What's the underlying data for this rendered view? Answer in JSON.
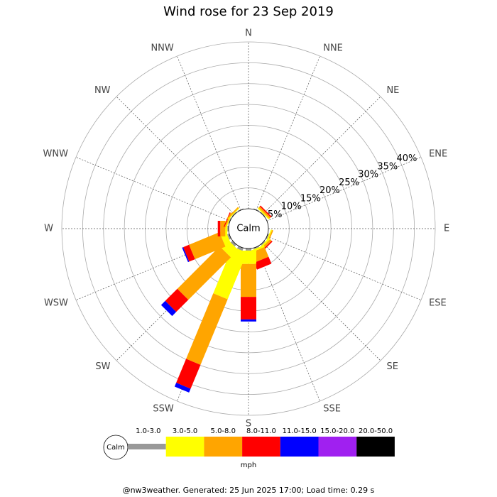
{
  "chart_data": {
    "type": "windrose",
    "title": "Wind rose for 23 Sep 2019",
    "categories": [
      "N",
      "NNE",
      "NE",
      "ENE",
      "E",
      "ESE",
      "SE",
      "SSE",
      "S",
      "SSW",
      "SW",
      "WSW",
      "W",
      "WNW",
      "NW",
      "NNW"
    ],
    "calm_label": "Calm",
    "series": [
      {
        "name": "1.0-3.0",
        "color": "#999999",
        "values": [
          0,
          0.2,
          0.2,
          0,
          0,
          0.3,
          0.3,
          0.3,
          0.5,
          0.7,
          0.6,
          0.5,
          0.3,
          0.2,
          0.2,
          0.2
        ]
      },
      {
        "name": "3.0-5.0",
        "color": "#ffff00",
        "values": [
          0,
          0,
          0.3,
          0,
          0,
          0.3,
          0.4,
          0.5,
          3.2,
          12.1,
          2.5,
          1.5,
          0.5,
          0.2,
          0.2,
          0
        ]
      },
      {
        "name": "5.0-8.0",
        "color": "#ffa500",
        "values": [
          0,
          0,
          0.4,
          0,
          0,
          0.3,
          0.5,
          2.5,
          7.9,
          17,
          14.4,
          7.9,
          1.2,
          0.3,
          0.3,
          0
        ]
      },
      {
        "name": "8.0-11.0",
        "color": "#ff0000",
        "values": [
          0,
          0,
          0.3,
          0,
          0,
          0,
          0.3,
          1.8,
          5.4,
          6.2,
          4.1,
          1.5,
          0.6,
          0.2,
          0,
          0
        ]
      },
      {
        "name": "11.0-15.0",
        "color": "#0000ff",
        "values": [
          0,
          0,
          0,
          0,
          0,
          0,
          0,
          0,
          0.5,
          1,
          1.4,
          0.3,
          0,
          0,
          0,
          0
        ]
      },
      {
        "name": "15.0-20.0",
        "color": "#a020f0",
        "values": [
          0,
          0,
          0,
          0,
          0,
          0,
          0,
          0,
          0,
          0,
          0,
          0,
          0,
          0,
          0,
          0
        ]
      },
      {
        "name": "20.0-50.0",
        "color": "#000000",
        "values": [
          0,
          0,
          0,
          0,
          0,
          0,
          0,
          0,
          0,
          0,
          0,
          0,
          0,
          0,
          0,
          0
        ]
      }
    ],
    "rlim": [
      0,
      40
    ],
    "rticks": [
      {
        "value": 5,
        "label": "5%"
      },
      {
        "value": 10,
        "label": "10%"
      },
      {
        "value": 15,
        "label": "15%"
      },
      {
        "value": 20,
        "label": "20%"
      },
      {
        "value": 25,
        "label": "25%"
      },
      {
        "value": 30,
        "label": "30%"
      },
      {
        "value": 35,
        "label": "35%"
      },
      {
        "value": 40,
        "label": "40%"
      }
    ],
    "legend_unit": "mph",
    "footer": "@nw3weather. Generated: 25 Jun 2025 17:00; Load time: 0.29 s"
  }
}
